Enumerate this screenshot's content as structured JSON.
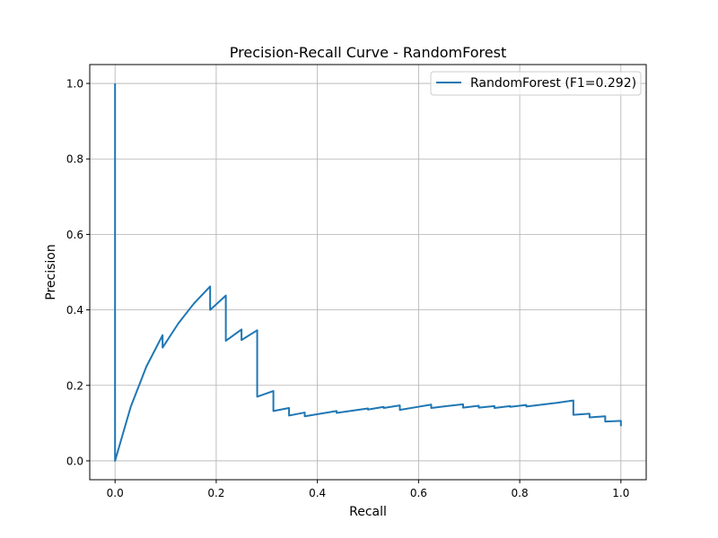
{
  "chart_data": {
    "type": "line",
    "title": "Precision-Recall Curve - RandomForest",
    "xlabel": "Recall",
    "ylabel": "Precision",
    "xlim": [
      -0.05,
      1.05
    ],
    "ylim": [
      -0.05,
      1.05
    ],
    "xticks": [
      0.0,
      0.2,
      0.4,
      0.6,
      0.8,
      1.0
    ],
    "yticks": [
      0.0,
      0.2,
      0.4,
      0.6,
      0.8,
      1.0
    ],
    "xtick_labels": [
      "0.0",
      "0.2",
      "0.4",
      "0.6",
      "0.8",
      "1.0"
    ],
    "ytick_labels": [
      "0.0",
      "0.2",
      "0.4",
      "0.6",
      "0.8",
      "1.0"
    ],
    "grid": true,
    "legend_position": "top-right",
    "series": [
      {
        "name": "RandomForest (F1=0.292)",
        "color": "#1f77b4",
        "x": [
          0.0,
          0.0,
          0.031,
          0.062,
          0.094,
          0.094,
          0.125,
          0.156,
          0.188,
          0.188,
          0.219,
          0.219,
          0.25,
          0.25,
          0.281,
          0.281,
          0.313,
          0.313,
          0.344,
          0.344,
          0.375,
          0.375,
          0.406,
          0.438,
          0.438,
          0.469,
          0.5,
          0.5,
          0.531,
          0.531,
          0.563,
          0.563,
          0.594,
          0.625,
          0.625,
          0.656,
          0.688,
          0.688,
          0.719,
          0.719,
          0.75,
          0.75,
          0.781,
          0.781,
          0.813,
          0.813,
          0.844,
          0.875,
          0.906,
          0.906,
          0.938,
          0.938,
          0.969,
          0.969,
          1.0,
          1.0
        ],
        "y": [
          1.0,
          0.0,
          0.143,
          0.25,
          0.333,
          0.3,
          0.364,
          0.417,
          0.462,
          0.4,
          0.438,
          0.318,
          0.348,
          0.32,
          0.346,
          0.17,
          0.185,
          0.132,
          0.14,
          0.12,
          0.128,
          0.118,
          0.125,
          0.132,
          0.127,
          0.133,
          0.139,
          0.136,
          0.143,
          0.14,
          0.147,
          0.135,
          0.142,
          0.149,
          0.14,
          0.145,
          0.15,
          0.141,
          0.146,
          0.141,
          0.145,
          0.14,
          0.145,
          0.143,
          0.148,
          0.144,
          0.149,
          0.154,
          0.16,
          0.122,
          0.125,
          0.115,
          0.118,
          0.104,
          0.106,
          0.092
        ]
      }
    ]
  }
}
